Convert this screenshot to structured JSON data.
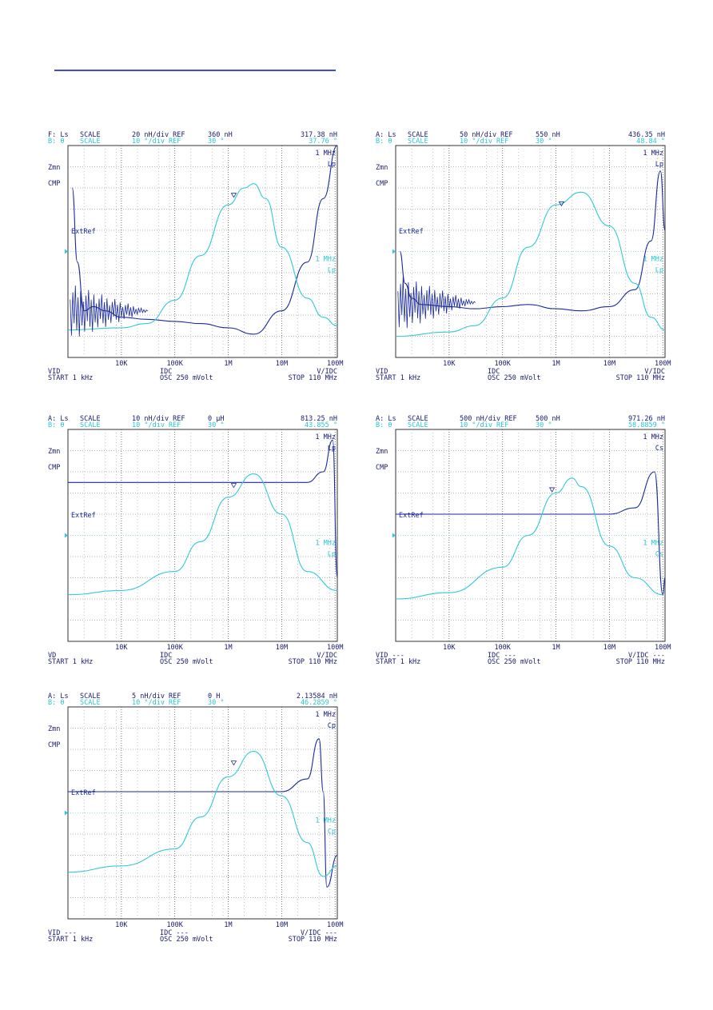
{
  "page": {
    "accent_blue": "#1a2a9e",
    "accent_cyan": "#33c9d6",
    "rule_color": "#3a4fd0"
  },
  "plots": [
    {
      "id": "p1",
      "hdr_a": [
        "F: Ls",
        "SCALE",
        "20 nH/div REF",
        "360 nH",
        "317.38 nH"
      ],
      "hdr_b": [
        "B: θ",
        "SCALE",
        "10 °/div REF",
        "30 °",
        "37.76 °"
      ],
      "right_labels": [
        "1 MHz",
        "Lp",
        "1 MHz",
        "Lp"
      ],
      "left_labels": [
        "Zmn",
        "CMP",
        "ExtRef"
      ],
      "xticks": [
        "10K",
        "100K",
        "1M",
        "10M",
        "100M"
      ],
      "foot_a": [
        "VID",
        "IDC",
        "V/IDC"
      ],
      "foot_b": [
        "START 1 kHz",
        "OSC 250 mVolt",
        "STOP 110 MHz"
      ]
    },
    {
      "id": "p2",
      "hdr_a": [
        "A: Ls",
        "SCALE",
        "50 nH/div REF",
        "550 nH",
        "436.35 nH"
      ],
      "hdr_b": [
        "B: θ",
        "SCALE",
        "10 °/div REF",
        "30 °",
        "48.84 °"
      ],
      "right_labels": [
        "1 MHz",
        "Lp",
        "1 MHz",
        "Lp"
      ],
      "left_labels": [
        "Zmn",
        "CMP",
        "ExtRef"
      ],
      "xticks": [
        "10K",
        "100K",
        "1M",
        "10M",
        "100M"
      ],
      "foot_a": [
        "VID",
        "IDC",
        "V/IDC"
      ],
      "foot_b": [
        "START 1 kHz",
        "OSC 250 mVolt",
        "STOP 110 MHz"
      ]
    },
    {
      "id": "p3",
      "hdr_a": [
        "A: Ls",
        "SCALE",
        "10 nH/div REF",
        "0 μH",
        "813.25 nH"
      ],
      "hdr_b": [
        "B: θ",
        "SCALE",
        "10 °/div REF",
        "30 °",
        "43.855 °"
      ],
      "right_labels": [
        "1 MHz",
        "Lp",
        "1 MHz",
        "Lp"
      ],
      "left_labels": [
        "Zmn",
        "CMP",
        "ExtRef"
      ],
      "xticks": [
        "10K",
        "100K",
        "1M",
        "10M",
        "100M"
      ],
      "foot_a": [
        "VD",
        "IDC",
        "V/IDC"
      ],
      "foot_b": [
        "START 1 kHz",
        "OSC 250 mVolt",
        "STOP 110 MHz"
      ]
    },
    {
      "id": "p4",
      "hdr_a": [
        "A: Ls",
        "SCALE",
        "500 nH/div REF",
        "500 nH",
        "971.26 nH"
      ],
      "hdr_b": [
        "B: θ",
        "SCALE",
        "10 °/div REF",
        "30 °",
        "58.8859 °"
      ],
      "right_labels": [
        "1 MHz",
        "Cs",
        "1 MHz",
        "Cs"
      ],
      "left_labels": [
        "Zmn",
        "CMP",
        "ExtRef"
      ],
      "xticks": [
        "10K",
        "100K",
        "1M",
        "10M",
        "100M"
      ],
      "foot_a": [
        "VID ---",
        "IDC ---",
        "V/IDC ---"
      ],
      "foot_b": [
        "START 1 kHz",
        "OSC 250 mVolt",
        "STOP 110 MHz"
      ]
    },
    {
      "id": "p5",
      "hdr_a": [
        "A: Ls",
        "SCALE",
        "5 nH/div REF",
        "0 H",
        "2.13584 nH"
      ],
      "hdr_b": [
        "B: θ",
        "SCALE",
        "10 °/div REF",
        "30 °",
        "46.2859 °"
      ],
      "right_labels": [
        "1 MHz",
        "Cp",
        "1 MHz",
        "Cp"
      ],
      "left_labels": [
        "Zmn",
        "CMP",
        "ExtRef"
      ],
      "xticks": [
        "10K",
        "100K",
        "1M",
        "10M",
        "100M"
      ],
      "foot_a": [
        "VID ---",
        "IDC ---",
        "V/IDC ---"
      ],
      "foot_b": [
        "START 1 kHz",
        "OSC 250 mVolt",
        "STOP 110 MHz"
      ]
    }
  ],
  "chart_data": [
    {
      "type": "line",
      "id": "p1",
      "xscale": "log",
      "xlim": [
        1000,
        110000000
      ],
      "xlabel": "",
      "ylabel": "",
      "series": [
        {
          "values": [
            [
              1200,
              0.8
            ],
            [
              1500,
              0.45
            ],
            [
              2000,
              0.22
            ],
            [
              3000,
              0.24
            ],
            [
              5000,
              0.22
            ],
            [
              10000,
              0.19
            ],
            [
              30000,
              0.18
            ],
            [
              100000,
              0.17
            ],
            [
              300000,
              0.16
            ],
            [
              1000000,
              0.14
            ],
            [
              3000000,
              0.11
            ],
            [
              10000000,
              0.22
            ],
            [
              30000000,
              0.45
            ],
            [
              60000000,
              0.75
            ],
            [
              110000000,
              1.0
            ]
          ]
        },
        {
          "values": [
            [
              1000,
              0.13
            ],
            [
              10000,
              0.14
            ],
            [
              30000,
              0.16
            ],
            [
              100000,
              0.27
            ],
            [
              300000,
              0.48
            ],
            [
              1000000,
              0.72
            ],
            [
              2000000,
              0.8
            ],
            [
              3000000,
              0.82
            ],
            [
              5000000,
              0.75
            ],
            [
              10000000,
              0.52
            ],
            [
              30000000,
              0.28
            ],
            [
              60000000,
              0.19
            ],
            [
              110000000,
              0.15
            ]
          ]
        }
      ]
    },
    {
      "type": "line",
      "id": "p2",
      "xscale": "log",
      "xlim": [
        1000,
        110000000
      ],
      "xlabel": "",
      "ylabel": "",
      "series": [
        {
          "values": [
            [
              1200,
              0.5
            ],
            [
              1500,
              0.35
            ],
            [
              2000,
              0.28
            ],
            [
              3000,
              0.25
            ],
            [
              10000,
              0.24
            ],
            [
              30000,
              0.23
            ],
            [
              100000,
              0.24
            ],
            [
              300000,
              0.25
            ],
            [
              1000000,
              0.23
            ],
            [
              3000000,
              0.22
            ],
            [
              10000000,
              0.24
            ],
            [
              30000000,
              0.32
            ],
            [
              60000000,
              0.55
            ],
            [
              90000000,
              0.88
            ],
            [
              110000000,
              0.6
            ]
          ]
        },
        {
          "values": [
            [
              1000,
              0.1
            ],
            [
              10000,
              0.12
            ],
            [
              30000,
              0.15
            ],
            [
              100000,
              0.28
            ],
            [
              300000,
              0.52
            ],
            [
              1000000,
              0.72
            ],
            [
              3000000,
              0.78
            ],
            [
              10000000,
              0.62
            ],
            [
              30000000,
              0.35
            ],
            [
              60000000,
              0.19
            ],
            [
              110000000,
              0.13
            ]
          ]
        }
      ]
    },
    {
      "type": "line",
      "id": "p3",
      "xscale": "log",
      "xlim": [
        1000,
        110000000
      ],
      "xlabel": "",
      "ylabel": "",
      "series": [
        {
          "values": [
            [
              1000,
              0.75
            ],
            [
              10000,
              0.75
            ],
            [
              1000000,
              0.75
            ],
            [
              30000000,
              0.75
            ],
            [
              60000000,
              0.8
            ],
            [
              90000000,
              0.95
            ],
            [
              110000000,
              0.3
            ]
          ]
        },
        {
          "values": [
            [
              1000,
              0.22
            ],
            [
              10000,
              0.24
            ],
            [
              100000,
              0.33
            ],
            [
              300000,
              0.47
            ],
            [
              1000000,
              0.68
            ],
            [
              3000000,
              0.79
            ],
            [
              10000000,
              0.6
            ],
            [
              30000000,
              0.33
            ],
            [
              110000000,
              0.24
            ]
          ]
        }
      ]
    },
    {
      "type": "line",
      "id": "p4",
      "xscale": "log",
      "xlim": [
        1000,
        110000000
      ],
      "xlabel": "",
      "ylabel": "",
      "series": [
        {
          "values": [
            [
              1000,
              0.6
            ],
            [
              10000,
              0.6
            ],
            [
              1000000,
              0.6
            ],
            [
              10000000,
              0.6
            ],
            [
              30000000,
              0.63
            ],
            [
              70000000,
              0.8
            ],
            [
              100000000,
              0.22
            ],
            [
              110000000,
              0.3
            ]
          ]
        },
        {
          "values": [
            [
              1000,
              0.2
            ],
            [
              10000,
              0.23
            ],
            [
              100000,
              0.35
            ],
            [
              300000,
              0.5
            ],
            [
              1000000,
              0.7
            ],
            [
              2000000,
              0.77
            ],
            [
              3000000,
              0.73
            ],
            [
              10000000,
              0.45
            ],
            [
              30000000,
              0.3
            ],
            [
              100000000,
              0.22
            ]
          ]
        }
      ]
    },
    {
      "type": "line",
      "id": "p5",
      "xscale": "log",
      "xlim": [
        1000,
        110000000
      ],
      "xlabel": "",
      "ylabel": "",
      "series": [
        {
          "values": [
            [
              1000,
              0.6
            ],
            [
              10000,
              0.6
            ],
            [
              1000000,
              0.6
            ],
            [
              10000000,
              0.6
            ],
            [
              30000000,
              0.66
            ],
            [
              50000000,
              0.85
            ],
            [
              60000000,
              0.6
            ],
            [
              70000000,
              0.15
            ],
            [
              110000000,
              0.3
            ]
          ]
        },
        {
          "values": [
            [
              1000,
              0.22
            ],
            [
              10000,
              0.25
            ],
            [
              100000,
              0.33
            ],
            [
              300000,
              0.48
            ],
            [
              1000000,
              0.67
            ],
            [
              3000000,
              0.79
            ],
            [
              10000000,
              0.58
            ],
            [
              30000000,
              0.36
            ],
            [
              60000000,
              0.2
            ],
            [
              110000000,
              0.25
            ]
          ]
        }
      ]
    }
  ]
}
